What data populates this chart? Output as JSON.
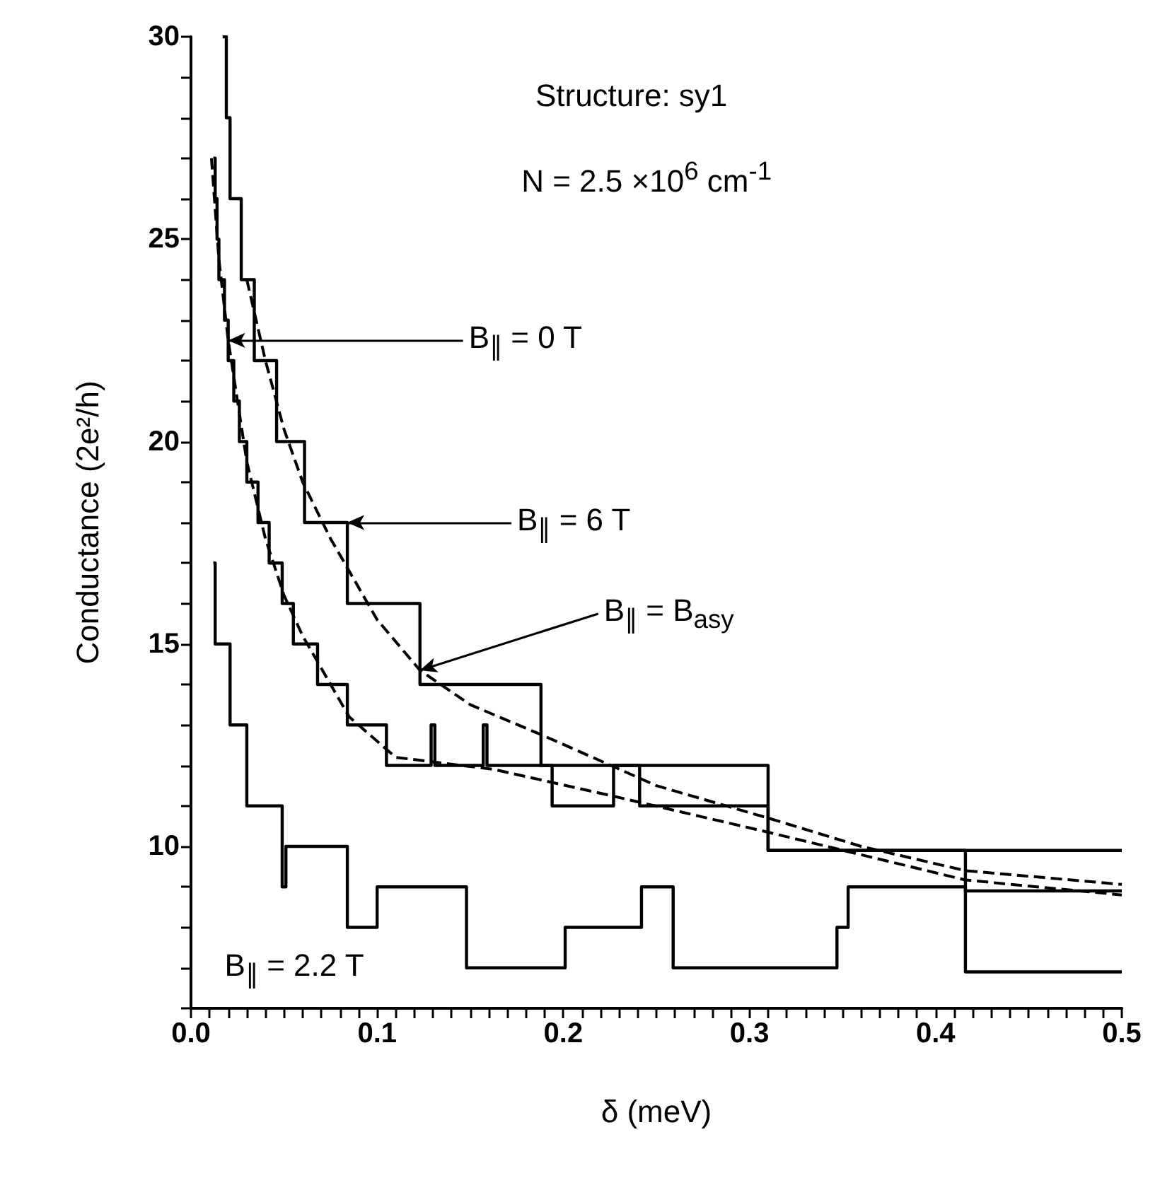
{
  "chart_data": {
    "type": "step",
    "xlabel": "δ (meV)",
    "ylabel": "Conductance (2e²/h)",
    "xlim": [
      0,
      0.5
    ],
    "ylim": [
      6,
      30
    ],
    "xticks": [
      {
        "value": 0,
        "label": "0.0"
      },
      {
        "value": 0.01,
        "label": null
      },
      {
        "value": 0.02,
        "label": null
      },
      {
        "value": 0.03,
        "label": null
      },
      {
        "value": 0.04,
        "label": null
      },
      {
        "value": 0.05,
        "label": null
      },
      {
        "value": 0.06,
        "label": null
      },
      {
        "value": 0.07,
        "label": null
      },
      {
        "value": 0.08,
        "label": null
      },
      {
        "value": 0.09,
        "label": null
      },
      {
        "value": 0.1,
        "label": "0.1"
      },
      {
        "value": 0.11,
        "label": null
      },
      {
        "value": 0.12,
        "label": null
      },
      {
        "value": 0.13,
        "label": null
      },
      {
        "value": 0.14,
        "label": null
      },
      {
        "value": 0.15,
        "label": null
      },
      {
        "value": 0.16,
        "label": null
      },
      {
        "value": 0.17,
        "label": null
      },
      {
        "value": 0.18,
        "label": null
      },
      {
        "value": 0.19,
        "label": null
      },
      {
        "value": 0.2,
        "label": "0.2"
      },
      {
        "value": 0.21,
        "label": null
      },
      {
        "value": 0.22,
        "label": null
      },
      {
        "value": 0.23,
        "label": null
      },
      {
        "value": 0.24,
        "label": null
      },
      {
        "value": 0.25,
        "label": null
      },
      {
        "value": 0.26,
        "label": null
      },
      {
        "value": 0.27,
        "label": null
      },
      {
        "value": 0.28,
        "label": null
      },
      {
        "value": 0.29,
        "label": null
      },
      {
        "value": 0.3,
        "label": "0.3"
      },
      {
        "value": 0.31,
        "label": null
      },
      {
        "value": 0.32,
        "label": null
      },
      {
        "value": 0.33,
        "label": null
      },
      {
        "value": 0.34,
        "label": null
      },
      {
        "value": 0.35,
        "label": null
      },
      {
        "value": 0.36,
        "label": null
      },
      {
        "value": 0.37,
        "label": null
      },
      {
        "value": 0.38,
        "label": null
      },
      {
        "value": 0.39,
        "label": null
      },
      {
        "value": 0.4,
        "label": "0.4"
      },
      {
        "value": 0.41,
        "label": null
      },
      {
        "value": 0.42,
        "label": null
      },
      {
        "value": 0.43,
        "label": null
      },
      {
        "value": 0.44,
        "label": null
      },
      {
        "value": 0.45,
        "label": null
      },
      {
        "value": 0.46,
        "label": null
      },
      {
        "value": 0.47,
        "label": null
      },
      {
        "value": 0.48,
        "label": null
      },
      {
        "value": 0.49,
        "label": null
      },
      {
        "value": 0.5,
        "label": "0.5"
      }
    ],
    "yticks": [
      {
        "value": 6,
        "label": null
      },
      {
        "value": 7,
        "label": null
      },
      {
        "value": 8,
        "label": null
      },
      {
        "value": 9,
        "label": null
      },
      10,
      {
        "value": 11,
        "label": null
      },
      {
        "value": 12,
        "label": null
      },
      {
        "value": 13,
        "label": null
      },
      {
        "value": 14,
        "label": null
      },
      15,
      {
        "value": 16,
        "label": null
      },
      {
        "value": 17,
        "label": null
      },
      {
        "value": 18,
        "label": null
      },
      {
        "value": 19,
        "label": null
      },
      20,
      {
        "value": 21,
        "label": null
      },
      {
        "value": 22,
        "label": null
      },
      {
        "value": 23,
        "label": null
      },
      {
        "value": 24,
        "label": null
      },
      25,
      {
        "value": 26,
        "label": null
      },
      {
        "value": 27,
        "label": null
      },
      {
        "value": 28,
        "label": null
      },
      {
        "value": 29,
        "label": null
      },
      30
    ],
    "series": [
      {
        "color": "#000000",
        "x": [
          0.017,
          0.019,
          0.021,
          0.027,
          0.034,
          0.046,
          0.061,
          0.084,
          0.123,
          0.188,
          0.31,
          0.5
        ],
        "values": [
          30,
          28,
          26,
          24,
          22,
          20,
          18,
          16,
          14,
          12,
          9.9,
          9.9
        ]
      },
      {
        "color": "#000000",
        "x": [
          0.012,
          0.013,
          0.014,
          0.015,
          0.018,
          0.02,
          0.023,
          0.026,
          0.03,
          0.036,
          0.042,
          0.049,
          0.055,
          0.068,
          0.084,
          0.105,
          0.129,
          0.131,
          0.157,
          0.159,
          0.194,
          0.227,
          0.241,
          0.31,
          0.416,
          0.5
        ],
        "values": [
          27,
          26,
          25,
          24,
          23,
          22,
          21,
          20,
          19,
          18,
          17,
          16,
          15,
          14,
          13,
          12,
          13,
          12,
          13,
          12,
          11,
          12,
          11,
          9.9,
          8.9,
          8.9
        ]
      },
      {
        "color": "#000000",
        "name": "B$_{∥}$ = 2.2 T",
        "x": [
          0.012,
          0.013,
          0.021,
          0.03,
          0.049,
          0.051,
          0.084,
          0.1,
          0.148,
          0.201,
          0.242,
          0.259,
          0.347,
          0.353,
          0.416,
          0.5
        ],
        "values": [
          17,
          15,
          13,
          11,
          9,
          10,
          8,
          9,
          7,
          8,
          9,
          7,
          8,
          9,
          6.9,
          6.9
        ]
      },
      {
        "type": "line",
        "color": "#000000",
        "line_style": "dashed",
        "x": [
          0.03,
          0.04,
          0.05,
          0.06,
          0.075,
          0.1,
          0.123,
          0.15,
          0.186,
          0.201,
          0.25,
          0.31,
          0.36,
          0.416,
          0.5
        ],
        "values": [
          24,
          22,
          20.3,
          19,
          17.6,
          15.6,
          14.35,
          13.5,
          12.8,
          12.5,
          11.5,
          10.7,
          10,
          9.4,
          9.06
        ]
      },
      {
        "type": "line",
        "color": "#000000",
        "line_style": "dashed",
        "x": [
          0.011,
          0.015,
          0.02,
          0.03,
          0.04,
          0.05,
          0.06,
          0.075,
          0.085,
          0.11,
          0.163,
          0.226,
          0.31,
          0.416,
          0.5
        ],
        "values": [
          27,
          24.5,
          22.5,
          19.5,
          17.6,
          16.2,
          15.2,
          14,
          13.2,
          12.2,
          11.9,
          11.25,
          10.35,
          9.17,
          8.8
        ]
      }
    ],
    "annotations": [
      "Structure: sy1",
      "N = 2.5 ×10$^{6}$ cm$^{-1}$",
      {
        "text": "B$_{∥}$ = 0 T",
        "x": 0.02,
        "y": 22.5
      },
      {
        "text": "B$_{∥}$ = 6 T",
        "x": 0.084,
        "y": 18
      },
      {
        "text": "B$_{∥}$ = B$_{asy}$",
        "x": 0.123,
        "y": 14.35
      }
    ]
  }
}
